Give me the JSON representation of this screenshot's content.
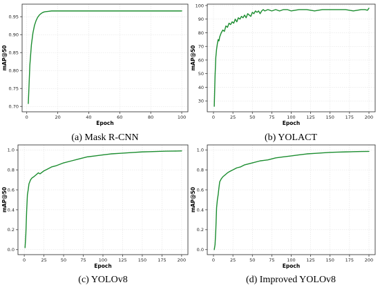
{
  "chart_data": [
    {
      "type": "line",
      "caption": "(a) Mask R-CNN",
      "xlabel": "Epoch",
      "ylabel": "mAP@50",
      "xlim": [
        -3,
        104
      ],
      "ylim": [
        0.685,
        0.985
      ],
      "xticks": [
        0,
        20,
        40,
        60,
        80,
        100
      ],
      "yticks": [
        0.7,
        0.75,
        0.8,
        0.85,
        0.9,
        0.95
      ],
      "ytick_labels": [
        "0.70",
        "0.75",
        "0.80",
        "0.85",
        "0.90",
        "0.95"
      ],
      "grid": true,
      "color": "#1a8c2e",
      "series": [
        {
          "x": [
            1,
            2,
            3,
            4,
            5,
            6,
            7,
            8,
            9,
            10,
            11,
            12,
            14,
            16,
            18,
            20,
            25,
            30,
            40,
            50,
            60,
            70,
            80,
            90,
            100
          ],
          "y": [
            0.708,
            0.815,
            0.872,
            0.905,
            0.926,
            0.939,
            0.948,
            0.954,
            0.958,
            0.961,
            0.963,
            0.964,
            0.965,
            0.966,
            0.966,
            0.966,
            0.966,
            0.966,
            0.966,
            0.966,
            0.966,
            0.966,
            0.966,
            0.966,
            0.966
          ]
        }
      ]
    },
    {
      "type": "line",
      "caption": "(b) YOLACT",
      "xlabel": "Epoch",
      "ylabel": "mAP@50",
      "xlim": [
        -8,
        208
      ],
      "ylim": [
        22,
        101
      ],
      "xticks": [
        0,
        25,
        50,
        75,
        100,
        125,
        150,
        175,
        200
      ],
      "yticks": [
        30,
        40,
        50,
        60,
        70,
        80,
        90,
        100
      ],
      "ytick_labels": [
        "30",
        "40",
        "50",
        "60",
        "70",
        "80",
        "90",
        "100"
      ],
      "grid": true,
      "color": "#1a8c2e",
      "series": [
        {
          "x": [
            1,
            2,
            3,
            4,
            5,
            6,
            7,
            8,
            10,
            12,
            14,
            16,
            18,
            20,
            22,
            24,
            26,
            28,
            30,
            32,
            34,
            36,
            38,
            40,
            42,
            44,
            46,
            48,
            50,
            52,
            54,
            56,
            58,
            60,
            62,
            64,
            66,
            70,
            75,
            80,
            85,
            90,
            95,
            100,
            110,
            120,
            130,
            140,
            150,
            160,
            170,
            180,
            190,
            195,
            198,
            200
          ],
          "y": [
            26,
            48,
            62,
            68,
            72,
            75,
            74,
            77,
            80,
            82,
            81,
            85,
            84,
            87,
            86,
            88,
            87,
            90,
            88,
            91,
            90,
            92,
            91,
            93,
            91,
            94,
            93,
            92,
            95,
            94,
            96,
            95,
            96,
            94,
            96,
            97,
            96,
            97,
            96,
            97,
            96,
            97,
            97,
            96,
            97,
            97,
            96,
            97,
            97,
            97,
            97,
            96,
            97,
            97,
            96.5,
            98
          ]
        }
      ]
    },
    {
      "type": "line",
      "caption": "(c) YOLOv8",
      "xlabel": "Epoch",
      "ylabel": "mAP@50",
      "xlim": [
        -8,
        208
      ],
      "ylim": [
        -0.05,
        1.05
      ],
      "xticks": [
        0,
        25,
        50,
        75,
        100,
        125,
        150,
        175,
        200
      ],
      "yticks": [
        0.0,
        0.2,
        0.4,
        0.6,
        0.8,
        1.0
      ],
      "ytick_labels": [
        "0.0",
        "0.2",
        "0.4",
        "0.6",
        "0.8",
        "1.0"
      ],
      "grid": true,
      "color": "#1a8c2e",
      "series": [
        {
          "x": [
            1,
            2,
            3,
            4,
            5,
            6,
            7,
            8,
            10,
            12,
            15,
            18,
            20,
            25,
            30,
            35,
            40,
            50,
            60,
            70,
            80,
            90,
            100,
            110,
            120,
            130,
            140,
            150,
            160,
            170,
            180,
            190,
            200
          ],
          "y": [
            0.02,
            0.15,
            0.38,
            0.55,
            0.6,
            0.66,
            0.68,
            0.7,
            0.72,
            0.73,
            0.75,
            0.77,
            0.76,
            0.79,
            0.81,
            0.83,
            0.84,
            0.87,
            0.89,
            0.91,
            0.93,
            0.94,
            0.95,
            0.96,
            0.965,
            0.97,
            0.975,
            0.98,
            0.982,
            0.985,
            0.987,
            0.988,
            0.99
          ]
        }
      ]
    },
    {
      "type": "line",
      "caption": "(d) Improved YOLOv8",
      "xlabel": "Epoch",
      "ylabel": "mAP@50",
      "xlim": [
        -8,
        208
      ],
      "ylim": [
        -0.05,
        1.05
      ],
      "xticks": [
        0,
        25,
        50,
        75,
        100,
        125,
        150,
        175,
        200
      ],
      "yticks": [
        0.0,
        0.2,
        0.4,
        0.6,
        0.8,
        1.0
      ],
      "ytick_labels": [
        "0.0",
        "0.2",
        "0.4",
        "0.6",
        "0.8",
        "1.0"
      ],
      "grid": true,
      "color": "#1a8c2e",
      "series": [
        {
          "x": [
            1,
            2,
            3,
            4,
            5,
            6,
            7,
            8,
            10,
            12,
            15,
            18,
            20,
            25,
            30,
            35,
            40,
            50,
            60,
            70,
            80,
            90,
            100,
            110,
            120,
            130,
            140,
            150,
            160,
            170,
            180,
            190,
            200
          ],
          "y": [
            0.0,
            0.05,
            0.2,
            0.42,
            0.5,
            0.55,
            0.62,
            0.68,
            0.71,
            0.73,
            0.75,
            0.77,
            0.78,
            0.8,
            0.82,
            0.83,
            0.85,
            0.87,
            0.89,
            0.9,
            0.92,
            0.93,
            0.94,
            0.95,
            0.96,
            0.965,
            0.97,
            0.975,
            0.978,
            0.98,
            0.982,
            0.984,
            0.985
          ]
        }
      ]
    }
  ]
}
